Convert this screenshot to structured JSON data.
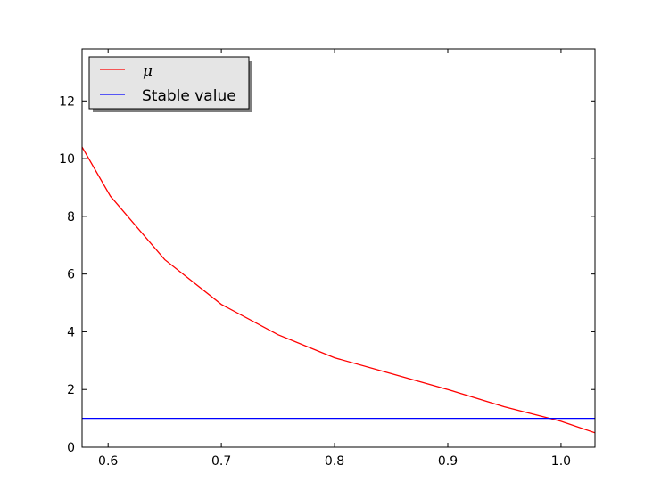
{
  "chart_data": {
    "type": "line",
    "title": "",
    "xlabel": "",
    "ylabel": "",
    "xlim": [
      0.577,
      1.03
    ],
    "ylim": [
      0,
      13.8
    ],
    "grid": false,
    "legend_position": "top-left",
    "xticks": [
      0.6,
      0.7,
      0.8,
      0.9,
      1.0
    ],
    "xtick_labels": [
      "0.6",
      "0.7",
      "0.8",
      "0.9",
      "1.0"
    ],
    "yticks": [
      0,
      2,
      4,
      6,
      8,
      10,
      12
    ],
    "ytick_labels": [
      "0",
      "2",
      "4",
      "6",
      "8",
      "10",
      "12"
    ],
    "series": [
      {
        "name": "μ",
        "color": "#ff0000",
        "x": [
          0.577,
          0.602,
          0.65,
          0.7,
          0.75,
          0.8,
          0.85,
          0.9,
          0.95,
          1.0,
          1.03
        ],
        "y": [
          10.4,
          8.7,
          6.5,
          4.95,
          3.9,
          3.1,
          2.55,
          2.0,
          1.4,
          0.9,
          0.5
        ]
      },
      {
        "name": "Stable value",
        "color": "#0000ff",
        "x": [
          0.577,
          1.03
        ],
        "y": [
          1.0,
          1.0
        ]
      }
    ]
  }
}
